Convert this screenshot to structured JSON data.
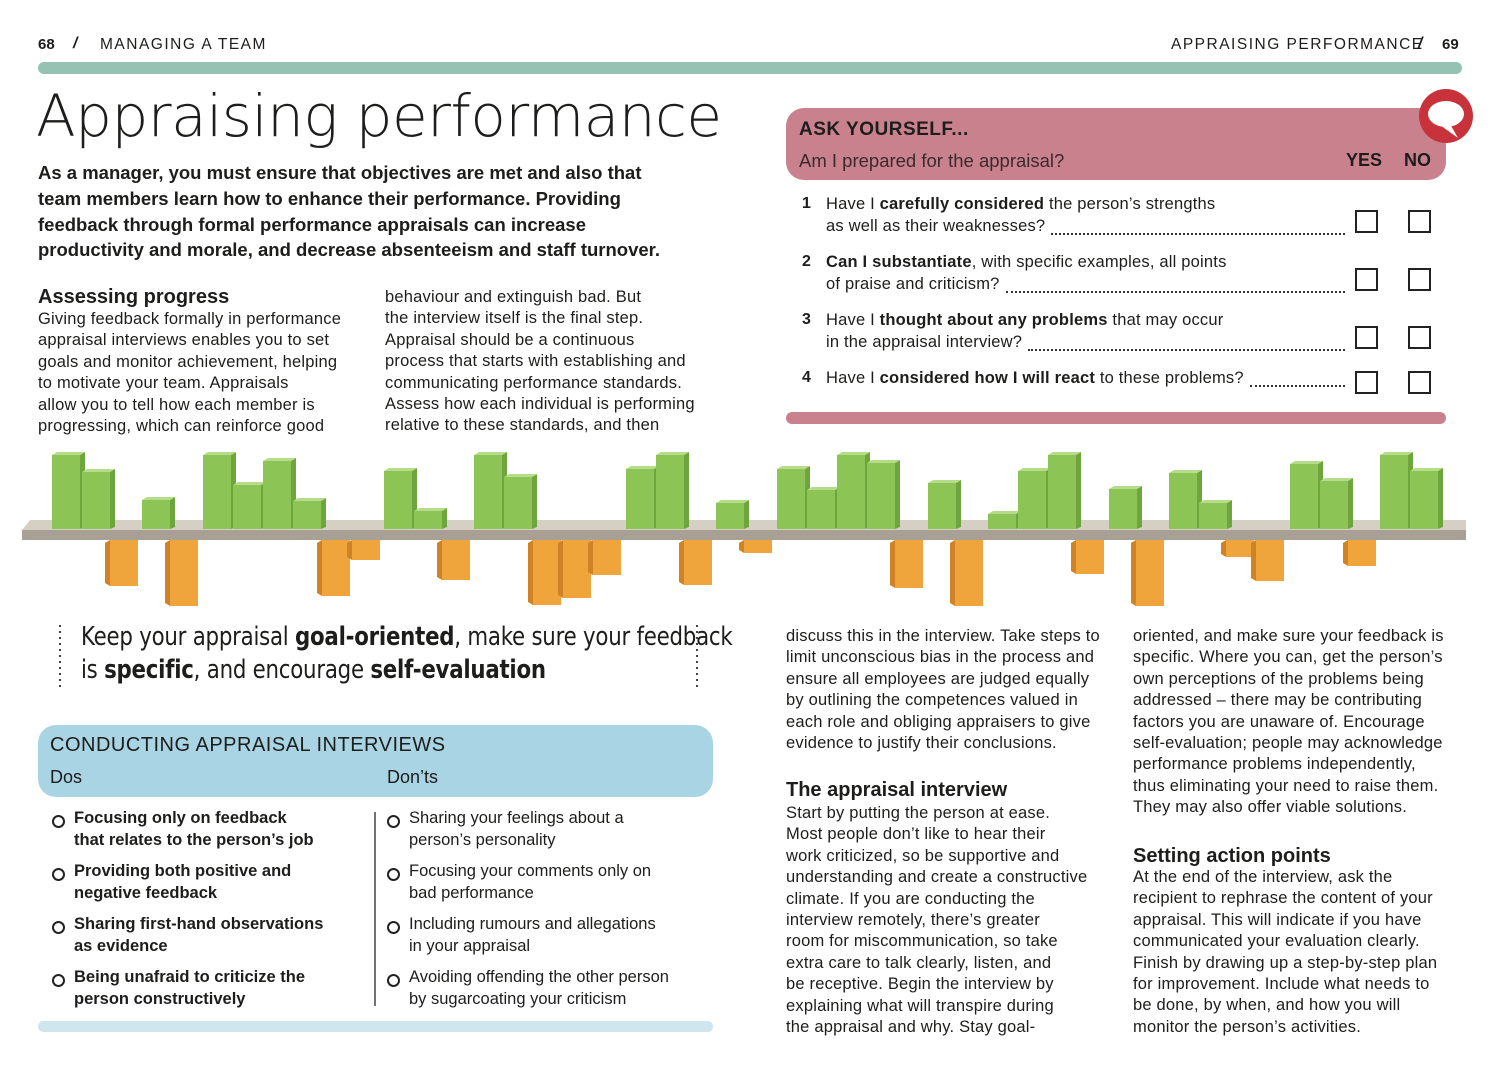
{
  "header": {
    "left_page": "68",
    "separator": "/",
    "left_section": "MANAGING A TEAM",
    "right_section": "APPRAISING PERFORMANCE",
    "right_page": "69"
  },
  "title": "Appraising performance",
  "intro": {
    "lines": [
      "As a manager, you must ensure that objectives are met and also that",
      "team members learn how to enhance their performance. Providing",
      "feedback through formal performance appraisals can increase",
      "productivity and morale, and decrease absenteeism and staff turnover."
    ]
  },
  "assessing": {
    "heading": "Assessing progress",
    "col1": [
      "Giving feedback formally in performance",
      "appraisal interviews enables you to set",
      "goals and monitor achievement, helping",
      "to motivate your team. Appraisals",
      "allow you to tell how each member is",
      "progressing, which can reinforce good"
    ],
    "col2": [
      "behaviour and extinguish bad. But",
      "the interview itself is the final step.",
      "Appraisal should be a continuous",
      "process that starts with establishing and",
      "communicating performance standards.",
      "Assess how each individual is performing",
      "relative to these standards, and then"
    ]
  },
  "ask": {
    "heading": "ASK YOURSELF...",
    "question": "Am I prepared for the appraisal?",
    "yes": "YES",
    "no": "NO",
    "items": [
      {
        "number": "1",
        "lines": [
          [
            {
              "text": "Have I ",
              "bold": false
            },
            {
              "text": "carefully considered",
              "bold": true
            },
            {
              "text": " the person’s strengths",
              "bold": false
            }
          ],
          [
            {
              "text": "as well as their weaknesses?",
              "bold": false
            }
          ]
        ]
      },
      {
        "number": "2",
        "lines": [
          [
            {
              "text": "Can I substantiate",
              "bold": true
            },
            {
              "text": ", with specific examples, all points",
              "bold": false
            }
          ],
          [
            {
              "text": "of praise and criticism?",
              "bold": false
            }
          ]
        ]
      },
      {
        "number": "3",
        "lines": [
          [
            {
              "text": "Have I ",
              "bold": false
            },
            {
              "text": "thought about any problems",
              "bold": true
            },
            {
              "text": " that may occur",
              "bold": false
            }
          ],
          [
            {
              "text": "in the appraisal interview?",
              "bold": false
            }
          ]
        ]
      },
      {
        "number": "4",
        "lines": [
          [
            {
              "text": "Have I ",
              "bold": false
            },
            {
              "text": "considered how I will react",
              "bold": true
            },
            {
              "text": " to these problems?",
              "bold": false
            }
          ]
        ]
      }
    ]
  },
  "quote": {
    "lines": [
      [
        {
          "text": "Keep your appraisal ",
          "bold": false
        },
        {
          "text": "goal-oriented",
          "bold": true
        },
        {
          "text": ", make sure your feedback",
          "bold": false
        }
      ],
      [
        {
          "text": "is ",
          "bold": false
        },
        {
          "text": "specific",
          "bold": true
        },
        {
          "text": ", and encourage ",
          "bold": false
        },
        {
          "text": "self-evaluation",
          "bold": true
        }
      ]
    ]
  },
  "interviews": {
    "title": "CONDUCTING APPRAISAL INTERVIEWS",
    "dos_label": "Dos",
    "donts_label": "Don’ts",
    "dos": [
      [
        "Focusing only on feedback",
        "that relates to the person’s job"
      ],
      [
        "Providing both positive and",
        "negative feedback"
      ],
      [
        "Sharing first-hand observations",
        "as evidence"
      ],
      [
        "Being unafraid to criticize the",
        "person constructively"
      ]
    ],
    "donts": [
      [
        "Sharing your feelings about a",
        "person’s personality"
      ],
      [
        "Focusing your comments only on",
        "bad performance"
      ],
      [
        "Including rumours and allegations",
        "in your appraisal"
      ],
      [
        "Avoiding offending the other person",
        "by sugarcoating your criticism"
      ]
    ]
  },
  "col3": {
    "lines": [
      "discuss this in the interview. Take steps to",
      "limit unconscious bias in the process and",
      "ensure all employees are judged equally",
      "by outlining the competences valued in",
      "each role and obliging appraisers to give",
      "evidence to justify their conclusions."
    ],
    "heading": "The appraisal interview",
    "body": [
      "Start by putting the person at ease.",
      "Most people don’t like to hear their",
      "work criticized, so be supportive and",
      "understanding and create a constructive",
      "climate. If you are conducting the",
      "interview remotely, there’s greater",
      "room for miscommunication, so take",
      "extra care to talk clearly, listen, and",
      "be receptive. Begin the interview by",
      "explaining what will transpire during",
      "the appraisal and why. Stay goal-"
    ]
  },
  "col4": {
    "lines": [
      "oriented, and make sure your feedback is",
      "specific. Where you can, get the person’s",
      "own perceptions of the problems being",
      "addressed – there may be contributing",
      "factors you are unaware of. Encourage",
      "self-evaluation; people may acknowledge",
      "performance problems independently,",
      "thus eliminating your need to raise them.",
      "They may also offer viable solutions."
    ],
    "heading": "Setting action points",
    "body": [
      "At the end of the interview, ask the",
      "recipient to rephrase the content of your",
      "appraisal. This will indicate if you have",
      "communicated your evaluation clearly.",
      "Finish by drawing up a step-by-step plan",
      "for improvement. Include what needs to",
      "be done, by when, and how you will",
      "monitor the person’s activities."
    ]
  }
}
